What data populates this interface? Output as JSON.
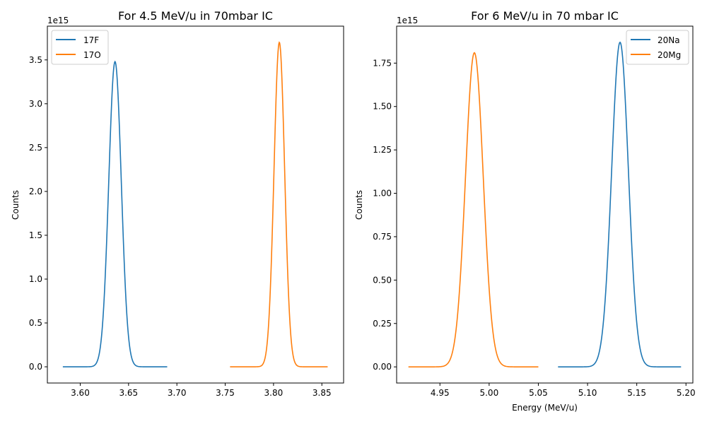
{
  "chart_data": [
    {
      "type": "line",
      "title": "For 4.5 MeV/u in 70mbar IC",
      "xlabel": "",
      "ylabel": "Counts",
      "y_offset_label": "1e15",
      "xlim": [
        3.566,
        3.8725
      ],
      "ylim": [
        -0.185,
        3.885
      ],
      "xticks": [
        3.6,
        3.65,
        3.7,
        3.75,
        3.8,
        3.85
      ],
      "xtick_labels": [
        "3.60",
        "3.65",
        "3.70",
        "3.75",
        "3.80",
        "3.85"
      ],
      "yticks": [
        0.0,
        0.5,
        1.0,
        1.5,
        2.0,
        2.5,
        3.0,
        3.5
      ],
      "ytick_labels": [
        "0.0",
        "0.5",
        "1.0",
        "1.5",
        "2.0",
        "2.5",
        "3.0",
        "3.5"
      ],
      "legend_position": "upper-left",
      "grid": false,
      "series": [
        {
          "name": "17F",
          "color": "#1f77b4",
          "x_range": [
            3.582,
            3.69
          ],
          "mean": 3.636,
          "sigma": 0.0065,
          "peak": 3.48
        },
        {
          "name": "17O",
          "color": "#ff7f0e",
          "x_range": [
            3.755,
            3.856
          ],
          "mean": 3.806,
          "sigma": 0.0055,
          "peak": 3.7
        }
      ]
    },
    {
      "type": "line",
      "title": "For 6 MeV/u in 70 mbar IC",
      "xlabel": "Energy (MeV/u)",
      "ylabel": "Counts",
      "y_offset_label": "1e15",
      "xlim": [
        4.906,
        5.207
      ],
      "ylim": [
        -0.093,
        1.963
      ],
      "xticks": [
        4.95,
        5.0,
        5.05,
        5.1,
        5.15,
        5.2
      ],
      "xtick_labels": [
        "4.95",
        "5.00",
        "5.05",
        "5.10",
        "5.15",
        "5.20"
      ],
      "yticks": [
        0.0,
        0.25,
        0.5,
        0.75,
        1.0,
        1.25,
        1.5,
        1.75
      ],
      "ytick_labels": [
        "0.00",
        "0.25",
        "0.50",
        "0.75",
        "1.00",
        "1.25",
        "1.50",
        "1.75"
      ],
      "legend_position": "upper-right",
      "grid": false,
      "series": [
        {
          "name": "20Na",
          "color": "#1f77b4",
          "x_range": [
            5.07,
            5.195
          ],
          "mean": 5.133,
          "sigma": 0.0085,
          "peak": 1.87
        },
        {
          "name": "20Mg",
          "color": "#ff7f0e",
          "x_range": [
            4.918,
            5.05
          ],
          "mean": 4.985,
          "sigma": 0.009,
          "peak": 1.81
        }
      ]
    }
  ]
}
